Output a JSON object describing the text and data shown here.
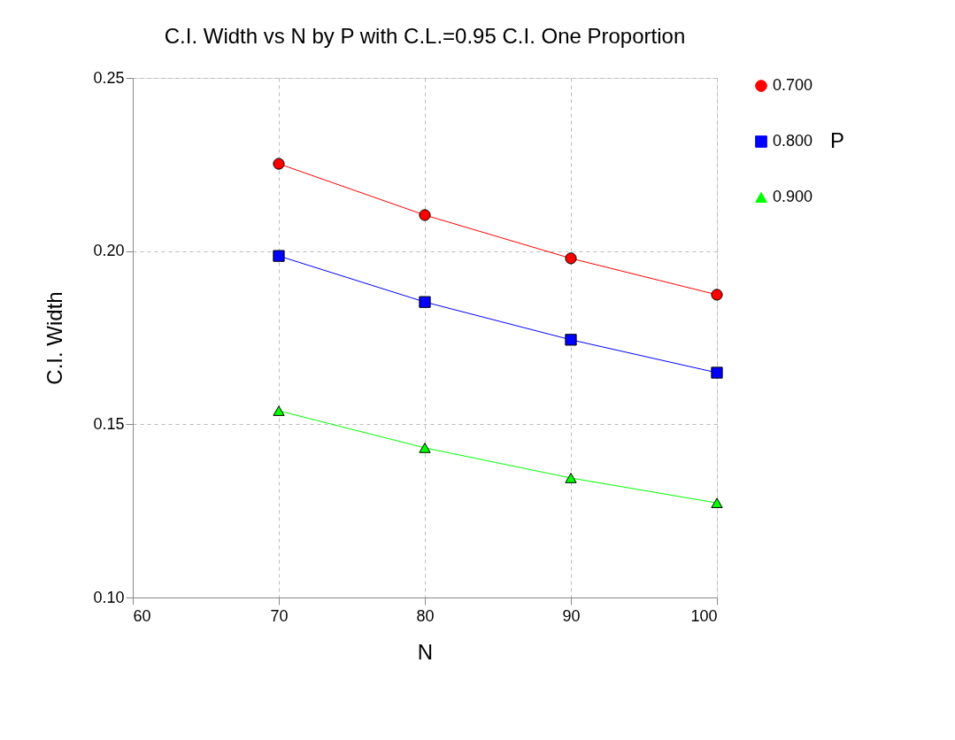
{
  "chart_data": {
    "type": "line",
    "title": "C.I. Width vs N by P with C.L.=0.95 C.I. One Proportion",
    "xlabel": "N",
    "ylabel": "C.I. Width",
    "legend_title": "P",
    "x": [
      70,
      80,
      90,
      100
    ],
    "series": [
      {
        "name": "0.700",
        "color": "#ff0000",
        "marker": "circle",
        "values": [
          0.2252,
          0.2104,
          0.1979,
          0.1874
        ]
      },
      {
        "name": "0.800",
        "color": "#0000ff",
        "marker": "square",
        "values": [
          0.1986,
          0.1853,
          0.1744,
          0.1649
        ]
      },
      {
        "name": "0.900",
        "color": "#00ff00",
        "marker": "triangle",
        "values": [
          0.1539,
          0.1432,
          0.1345,
          0.1273
        ]
      }
    ],
    "xlim": [
      60,
      100
    ],
    "xticks": [
      60,
      70,
      80,
      90,
      100
    ],
    "ylim": [
      0.1,
      0.25
    ],
    "yticks": [
      {
        "value": 0.1,
        "label": "0.10"
      },
      {
        "value": 0.15,
        "label": "0.15"
      },
      {
        "value": 0.2,
        "label": "0.20"
      },
      {
        "value": 0.25,
        "label": "0.25"
      }
    ],
    "grid": true,
    "legend": "right",
    "line_style": "solid"
  }
}
